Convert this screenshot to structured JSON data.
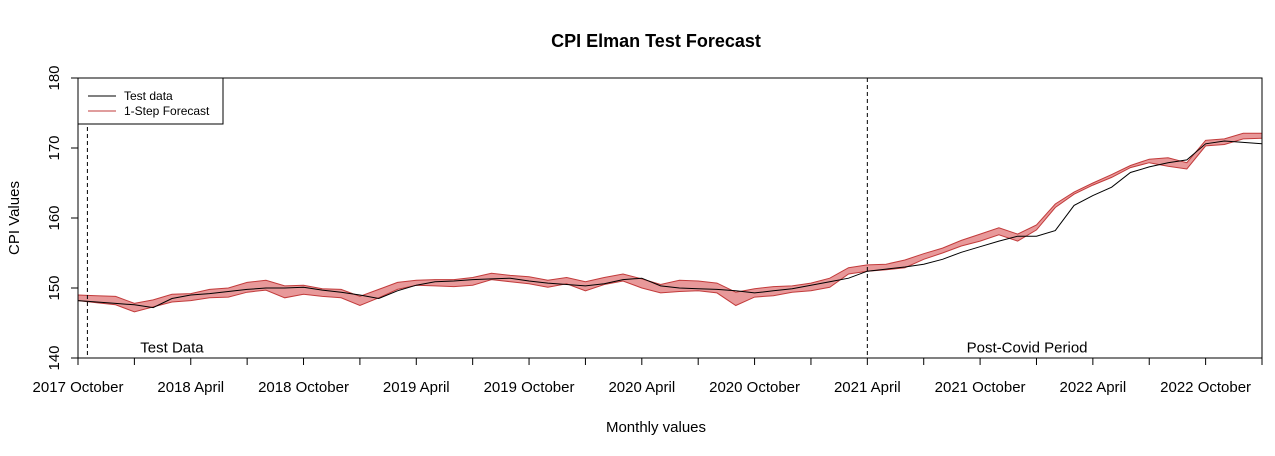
{
  "chart_data": {
    "type": "line",
    "title": "CPI Elman Test Forecast",
    "xlabel": "Monthly values",
    "ylabel": "CPI Values",
    "xlim": [
      0,
      63
    ],
    "ylim": [
      140,
      180
    ],
    "y_ticks": [
      140,
      150,
      160,
      170,
      180
    ],
    "x_ticks": [
      0,
      1,
      2,
      3,
      4,
      5,
      6,
      7,
      8,
      9,
      10,
      11,
      12,
      13,
      14,
      15,
      16,
      17,
      18,
      19,
      20,
      21,
      22,
      23,
      24,
      25,
      26,
      27,
      28,
      29,
      30,
      31,
      32,
      33,
      34,
      35,
      36,
      37,
      38,
      39,
      40,
      41,
      42,
      43,
      44,
      45,
      46,
      47,
      48,
      49,
      50,
      51,
      52,
      53,
      54,
      55,
      56,
      57,
      58,
      59,
      60,
      61,
      62,
      63
    ],
    "x_tick_marks": [
      0,
      3,
      6,
      9,
      12,
      15,
      18,
      21,
      24,
      27,
      30,
      33,
      36,
      39,
      42,
      45,
      48,
      51,
      54,
      57,
      60,
      63
    ],
    "x_tick_labels": [
      {
        "x": 0,
        "label": "2017 October"
      },
      {
        "x": 6,
        "label": "2018 April"
      },
      {
        "x": 12,
        "label": "2018 October"
      },
      {
        "x": 18,
        "label": "2019 April"
      },
      {
        "x": 24,
        "label": "2019 October"
      },
      {
        "x": 30,
        "label": "2020 April"
      },
      {
        "x": 36,
        "label": "2020 October"
      },
      {
        "x": 42,
        "label": "2021 April"
      },
      {
        "x": 48,
        "label": "2021 October"
      },
      {
        "x": 54,
        "label": "2022 April"
      },
      {
        "x": 60,
        "label": "2022 October"
      }
    ],
    "vlines": [
      0.5,
      42
    ],
    "annotations": [
      {
        "x": 5,
        "y": 140.8,
        "text": "Test Data"
      },
      {
        "x": 50.5,
        "y": 140.8,
        "text": "Post-Covid Period"
      }
    ],
    "legend": {
      "position": "top-left",
      "entries": [
        {
          "name": "Test data",
          "color": "#000000"
        },
        {
          "name": "1-Step Forecast",
          "color": "#c23b3b"
        }
      ]
    },
    "grid": false,
    "series": [
      {
        "name": "Test data",
        "color": "#000000",
        "x": [
          -1,
          0,
          1,
          2,
          3,
          4,
          5,
          6,
          7,
          8,
          9,
          10,
          11,
          12,
          13,
          14,
          15,
          16,
          17,
          18,
          19,
          20,
          21,
          22,
          23,
          24,
          25,
          26,
          27,
          28,
          29,
          30,
          31,
          32,
          33,
          34,
          35,
          36,
          37,
          38,
          39,
          40,
          41,
          42,
          43,
          44,
          45,
          46,
          47,
          48,
          49,
          50,
          51,
          52,
          53,
          54,
          55,
          56,
          57,
          58,
          59,
          60,
          61,
          62,
          63,
          64
        ],
        "values": [
          148.3,
          148.2,
          148.0,
          147.8,
          147.6,
          147.2,
          148.5,
          149.0,
          149.2,
          149.5,
          149.8,
          150.0,
          150.0,
          150.1,
          149.7,
          149.4,
          149.0,
          148.5,
          149.6,
          150.4,
          150.9,
          151.0,
          151.2,
          151.3,
          151.4,
          151.0,
          150.7,
          150.5,
          150.3,
          150.6,
          151.2,
          151.4,
          150.3,
          150.0,
          149.9,
          149.8,
          149.6,
          149.3,
          149.6,
          149.9,
          150.4,
          150.9,
          151.4,
          152.4,
          152.7,
          153.0,
          153.4,
          154.1,
          155.1,
          155.9,
          156.7,
          157.4,
          157.4,
          158.2,
          161.8,
          163.2,
          164.4,
          166.5,
          167.3,
          167.9,
          168.3,
          170.6,
          171.0,
          170.8,
          170.6,
          170.5
        ]
      },
      {
        "name": "1-Step Forecast",
        "color": "#c23b3b",
        "fill": "#e8999a",
        "x": [
          0,
          1,
          2,
          3,
          4,
          5,
          6,
          7,
          8,
          9,
          10,
          11,
          12,
          13,
          14,
          15,
          16,
          17,
          18,
          19,
          20,
          21,
          22,
          23,
          24,
          25,
          26,
          27,
          28,
          29,
          30,
          31,
          32,
          33,
          34,
          35,
          36,
          37,
          38,
          39,
          40,
          41,
          42,
          43,
          44,
          45,
          46,
          47,
          48,
          49,
          50,
          51,
          52,
          53,
          54,
          55,
          56,
          57,
          58,
          59,
          60,
          61,
          62,
          63,
          64
        ],
        "upper": [
          149.0,
          148.9,
          148.8,
          147.8,
          148.3,
          149.1,
          149.2,
          149.8,
          150.0,
          150.8,
          151.1,
          150.3,
          150.4,
          149.9,
          149.8,
          148.8,
          149.8,
          150.8,
          151.1,
          151.2,
          151.2,
          151.5,
          152.1,
          151.8,
          151.6,
          151.1,
          151.5,
          150.9,
          151.5,
          152.0,
          151.3,
          150.5,
          151.1,
          151.0,
          150.7,
          149.4,
          149.9,
          150.2,
          150.3,
          150.7,
          151.4,
          152.9,
          153.3,
          153.4,
          154.0,
          154.9,
          155.7,
          156.8,
          157.7,
          158.6,
          157.7,
          159.0,
          162.0,
          163.7,
          165.0,
          166.2,
          167.5,
          168.4,
          168.6,
          167.9,
          171.1,
          171.3,
          172.1,
          172.1,
          172.2
        ],
        "lower": [
          148.2,
          147.9,
          147.6,
          146.6,
          147.3,
          148.0,
          148.2,
          148.6,
          148.7,
          149.4,
          149.7,
          148.6,
          149.1,
          148.8,
          148.6,
          147.5,
          148.6,
          149.8,
          150.4,
          150.3,
          150.2,
          150.4,
          151.2,
          150.9,
          150.6,
          150.1,
          150.6,
          149.6,
          150.5,
          151.0,
          150.0,
          149.3,
          149.5,
          149.6,
          149.3,
          147.5,
          148.7,
          148.9,
          149.4,
          149.6,
          150.1,
          152.0,
          152.4,
          152.6,
          152.9,
          154.1,
          155.0,
          156.0,
          156.7,
          157.6,
          156.7,
          158.3,
          161.5,
          163.4,
          164.7,
          165.8,
          167.2,
          167.9,
          167.4,
          167.0,
          170.3,
          170.5,
          171.3,
          171.4,
          171.5
        ]
      }
    ]
  }
}
